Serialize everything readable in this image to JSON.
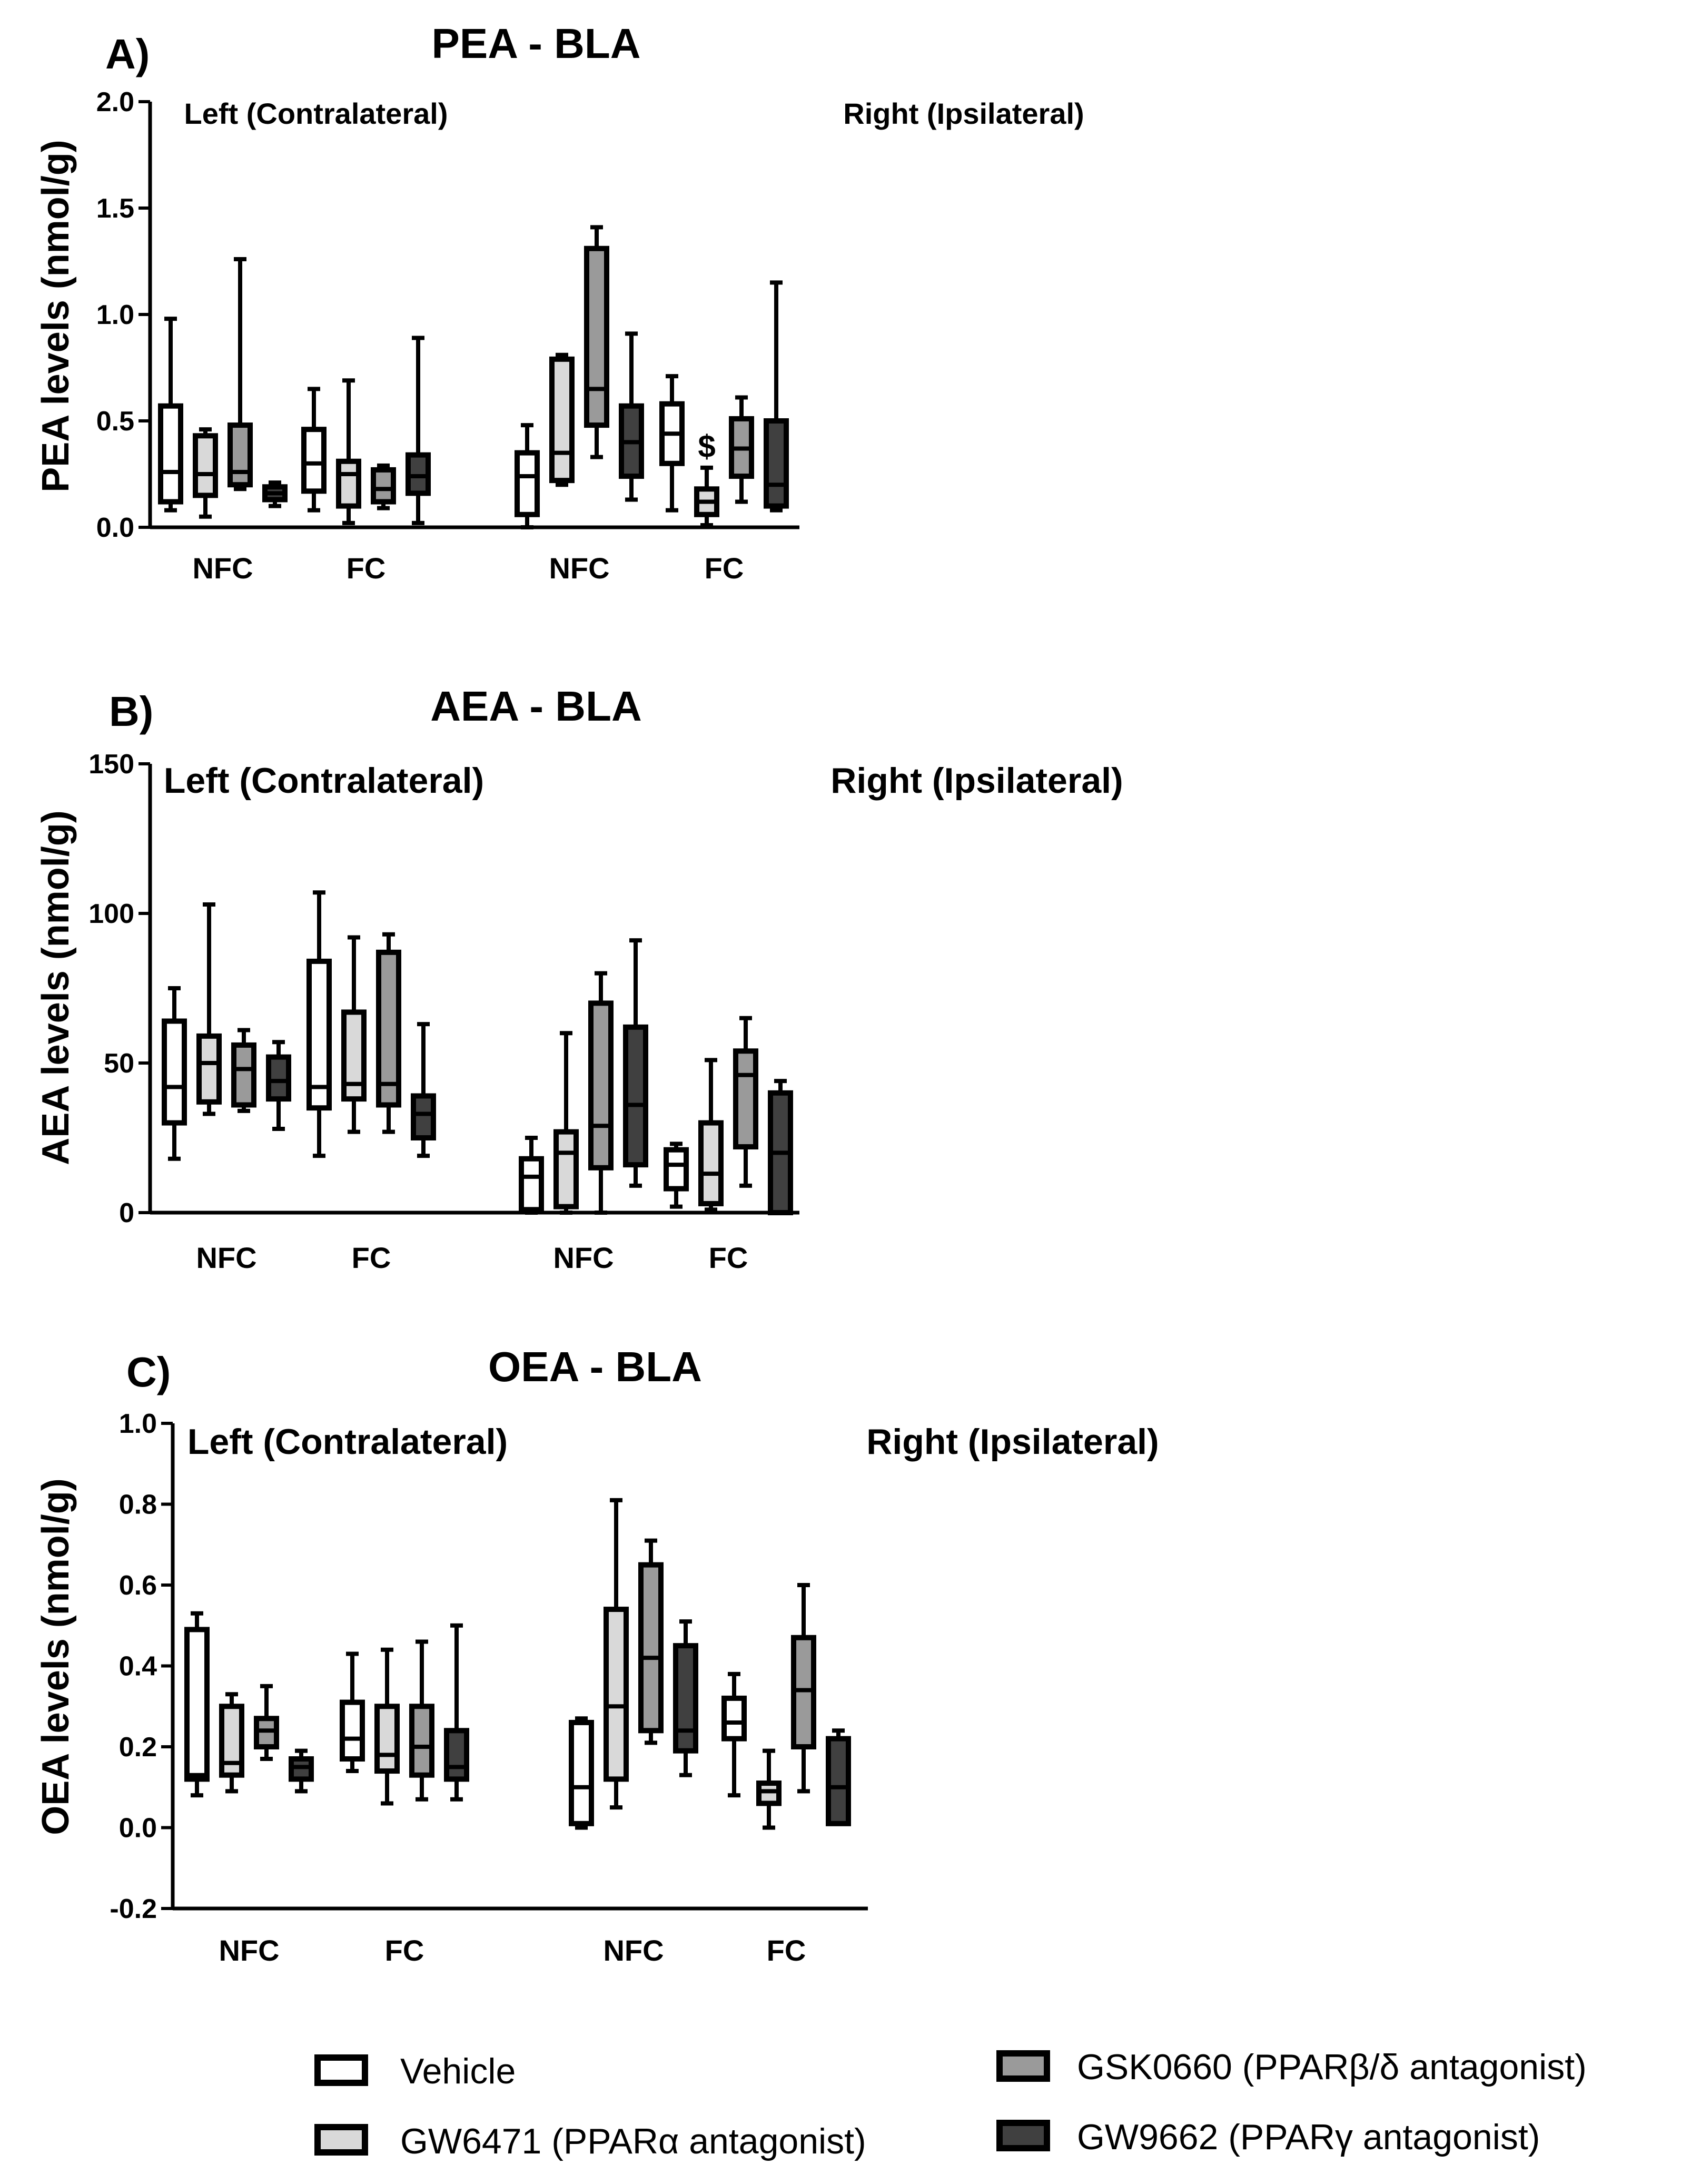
{
  "figure": {
    "legend": [
      {
        "key": "vehicle",
        "label": "Vehicle",
        "color": "#ffffff"
      },
      {
        "key": "gw6471",
        "label": "GW6471 (PPARα antagonist)",
        "color": "#d9d9d9"
      },
      {
        "key": "gsk0660",
        "label": "GSK0660 (PPARβ/δ antagonist)",
        "color": "#9a9a9a"
      },
      {
        "key": "gw9662",
        "label": "GW9662 (PPARγ antagonist)",
        "color": "#404040"
      }
    ]
  },
  "chart_data": [
    {
      "type": "box",
      "panel": "A)",
      "title": "PEA - BLA",
      "ylabel": "PEA levels (nmol/g)",
      "ylim": [
        0.0,
        2.0
      ],
      "yticks": [
        "0.0",
        "0.5",
        "1.0",
        "1.5",
        "2.0"
      ],
      "yticks_values": [
        0.0,
        0.5,
        1.0,
        1.5,
        2.0
      ],
      "sides": [
        "Left (Contralateral)",
        "Right (Ipsilateral)"
      ],
      "groups": [
        "NFC",
        "FC",
        "NFC",
        "FC"
      ],
      "series_order": [
        "vehicle",
        "gw6471",
        "gsk0660",
        "gw9662"
      ],
      "boxes": [
        [
          [
            0.08,
            0.12,
            0.26,
            0.57,
            0.98
          ],
          [
            0.05,
            0.15,
            0.25,
            0.43,
            0.46
          ],
          [
            0.18,
            0.2,
            0.26,
            0.48,
            1.26
          ],
          [
            0.1,
            0.13,
            0.16,
            0.19,
            0.21
          ]
        ],
        [
          [
            0.08,
            0.17,
            0.3,
            0.46,
            0.65
          ],
          [
            0.02,
            0.1,
            0.25,
            0.31,
            0.69
          ],
          [
            0.09,
            0.12,
            0.18,
            0.27,
            0.29
          ],
          [
            0.02,
            0.16,
            0.24,
            0.34,
            0.89
          ]
        ],
        [
          [
            0.0,
            0.06,
            0.24,
            0.35,
            0.48
          ],
          [
            0.2,
            0.22,
            0.35,
            0.79,
            0.81
          ],
          [
            0.33,
            0.48,
            0.65,
            1.31,
            1.41
          ],
          [
            0.13,
            0.24,
            0.4,
            0.57,
            0.91
          ]
        ],
        [
          [
            0.08,
            0.3,
            0.44,
            0.58,
            0.71
          ],
          [
            0.01,
            0.06,
            0.12,
            0.18,
            0.28
          ],
          [
            0.12,
            0.24,
            0.37,
            0.51,
            0.61
          ],
          [
            0.08,
            0.1,
            0.2,
            0.5,
            1.15
          ]
        ]
      ],
      "annotations": [
        {
          "text": "$",
          "group": 3,
          "series": 1
        }
      ]
    },
    {
      "type": "box",
      "panel": "B)",
      "title": "AEA - BLA",
      "ylabel": "AEA levels (nmol/g)",
      "ylim": [
        0,
        150
      ],
      "yticks": [
        "0",
        "50",
        "100",
        "150"
      ],
      "yticks_values": [
        0,
        50,
        100,
        150
      ],
      "sides": [
        "Left (Contralateral)",
        "Right (Ipsilateral)"
      ],
      "groups": [
        "NFC",
        "FC",
        "NFC",
        "FC"
      ],
      "series_order": [
        "vehicle",
        "gw6471",
        "gsk0660",
        "gw9662"
      ],
      "boxes": [
        [
          [
            18,
            30,
            42,
            64,
            75
          ],
          [
            33,
            37,
            50,
            59,
            103
          ],
          [
            34,
            36,
            48,
            56,
            61
          ],
          [
            28,
            38,
            44,
            52,
            57
          ]
        ],
        [
          [
            19,
            35,
            42,
            84,
            107
          ],
          [
            27,
            38,
            43,
            67,
            92
          ],
          [
            27,
            36,
            43,
            87,
            93
          ],
          [
            19,
            25,
            33,
            39,
            63
          ]
        ],
        [
          [
            0,
            1,
            12,
            18,
            25
          ],
          [
            0,
            2,
            20,
            27,
            60
          ],
          [
            0,
            15,
            29,
            70,
            80
          ],
          [
            9,
            16,
            36,
            62,
            91
          ]
        ],
        [
          [
            2,
            8,
            16,
            21,
            23
          ],
          [
            1,
            3,
            13,
            30,
            51
          ],
          [
            9,
            22,
            46,
            54,
            65
          ],
          [
            0,
            0,
            20,
            40,
            44
          ]
        ]
      ],
      "annotations": []
    },
    {
      "type": "box",
      "panel": "C)",
      "title": "OEA - BLA",
      "ylabel": "OEA levels (nmol/g)",
      "ylim": [
        -0.2,
        1.0
      ],
      "yticks": [
        "-0.2",
        "0.0",
        "0.2",
        "0.4",
        "0.6",
        "0.8",
        "1.0"
      ],
      "yticks_values": [
        -0.2,
        0.0,
        0.2,
        0.4,
        0.6,
        0.8,
        1.0
      ],
      "sides": [
        "Left (Contralateral)",
        "Right (Ipsilateral)"
      ],
      "groups": [
        "NFC",
        "FC",
        "NFC",
        "FC"
      ],
      "series_order": [
        "vehicle",
        "gw6471",
        "gsk0660",
        "gw9662"
      ],
      "boxes": [
        [
          [
            0.08,
            0.12,
            0.13,
            0.49,
            0.53
          ],
          [
            0.09,
            0.13,
            0.16,
            0.3,
            0.33
          ],
          [
            0.17,
            0.2,
            0.24,
            0.27,
            0.35
          ],
          [
            0.09,
            0.12,
            0.15,
            0.17,
            0.19
          ]
        ],
        [
          [
            0.14,
            0.17,
            0.22,
            0.31,
            0.43
          ],
          [
            0.06,
            0.14,
            0.18,
            0.3,
            0.44
          ],
          [
            0.07,
            0.13,
            0.2,
            0.3,
            0.46
          ],
          [
            0.07,
            0.12,
            0.15,
            0.24,
            0.5
          ]
        ],
        [
          [
            0.0,
            0.01,
            0.1,
            0.26,
            0.27
          ],
          [
            0.05,
            0.12,
            0.3,
            0.54,
            0.81
          ],
          [
            0.21,
            0.24,
            0.42,
            0.65,
            0.71
          ],
          [
            0.13,
            0.19,
            0.24,
            0.45,
            0.51
          ]
        ],
        [
          [
            0.08,
            0.22,
            0.26,
            0.32,
            0.38
          ],
          [
            0.0,
            0.06,
            0.09,
            0.11,
            0.19
          ],
          [
            0.09,
            0.2,
            0.34,
            0.47,
            0.6
          ],
          [
            0.01,
            0.01,
            0.1,
            0.22,
            0.24
          ]
        ]
      ],
      "annotations": []
    }
  ]
}
